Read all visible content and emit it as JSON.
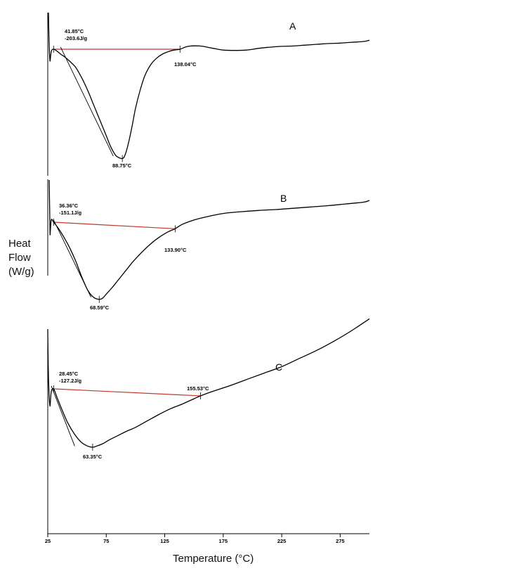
{
  "chart_data": {
    "type": "line",
    "xlabel": "Temperature (°C)",
    "ylabel_lines": [
      "Heat",
      "Flow",
      "(W/g)"
    ],
    "x_ticks": [
      25,
      75,
      125,
      175,
      225,
      275
    ],
    "xlim": [
      25,
      300
    ],
    "grid": false,
    "colors": {
      "curve": "#000000",
      "baseline": "#c0392b"
    },
    "series": [
      {
        "name": "A",
        "x": [
          27,
          28,
          30,
          33,
          36,
          40,
          44,
          49,
          54,
          59,
          64,
          69,
          74,
          79,
          83,
          86,
          88.75,
          91,
          94,
          97,
          100,
          104,
          108,
          113,
          118,
          123,
          128,
          133,
          138,
          145,
          155,
          165,
          175,
          185,
          195,
          205,
          215,
          225,
          235,
          245,
          255,
          265,
          275,
          285,
          295,
          300
        ],
        "y": [
          -0.3,
          -0.05,
          0.0,
          -0.05,
          -0.12,
          -0.2,
          -0.3,
          -0.45,
          -0.7,
          -1.0,
          -1.35,
          -1.7,
          -2.05,
          -2.4,
          -2.6,
          -2.66,
          -2.68,
          -2.6,
          -2.3,
          -1.9,
          -1.45,
          -1.0,
          -0.65,
          -0.38,
          -0.22,
          -0.12,
          -0.06,
          -0.02,
          0.0,
          0.07,
          0.08,
          0.03,
          -0.02,
          -0.03,
          -0.02,
          0.02,
          0.05,
          0.07,
          0.08,
          0.1,
          0.12,
          0.14,
          0.15,
          0.17,
          0.19,
          0.22
        ]
      },
      {
        "name": "B",
        "x": [
          27,
          28,
          30,
          33,
          36,
          40,
          44,
          49,
          54,
          59,
          64,
          69,
          72,
          75,
          80,
          86,
          92,
          98,
          105,
          112,
          120,
          128,
          133.9,
          140,
          150,
          160,
          175,
          190,
          205,
          220,
          235,
          250,
          265,
          280,
          295,
          300
        ],
        "y": [
          -0.3,
          0.05,
          0.0,
          -0.1,
          -0.22,
          -0.4,
          -0.6,
          -0.9,
          -1.25,
          -1.55,
          -1.72,
          -1.77,
          -1.74,
          -1.65,
          -1.5,
          -1.3,
          -1.1,
          -0.9,
          -0.7,
          -0.52,
          -0.35,
          -0.22,
          -0.15,
          -0.05,
          0.05,
          0.12,
          0.2,
          0.24,
          0.27,
          0.29,
          0.32,
          0.35,
          0.38,
          0.42,
          0.46,
          0.5
        ]
      },
      {
        "name": "C",
        "x": [
          27,
          28,
          30,
          33,
          37,
          42,
          48,
          54,
          59,
          63.35,
          67,
          72,
          78,
          85,
          92,
          100,
          110,
          120,
          130,
          140,
          150,
          155.53,
          165,
          180,
          195,
          210,
          225,
          240,
          255,
          270,
          285,
          300
        ],
        "y": [
          -0.3,
          -0.05,
          0.0,
          -0.15,
          -0.35,
          -0.58,
          -0.78,
          -0.92,
          -0.98,
          -1.0,
          -0.98,
          -0.94,
          -0.87,
          -0.8,
          -0.73,
          -0.66,
          -0.55,
          -0.44,
          -0.34,
          -0.26,
          -0.17,
          -0.12,
          -0.05,
          0.05,
          0.16,
          0.27,
          0.38,
          0.52,
          0.66,
          0.82,
          1.0,
          1.2
        ]
      }
    ],
    "baselines": [
      {
        "series": "A",
        "x": [
          30,
          138.04
        ],
        "y": [
          0.0,
          0.0
        ]
      },
      {
        "series": "B",
        "x": [
          30,
          133.9
        ],
        "y": [
          0.0,
          -0.15
        ]
      },
      {
        "series": "C",
        "x": [
          30,
          155.53
        ],
        "y": [
          0.0,
          -0.12
        ]
      }
    ],
    "annotations": [
      {
        "series": "A",
        "label": "A"
      },
      {
        "series": "A",
        "onset": "41.85°C",
        "enthalpy": "-203.6J/g"
      },
      {
        "series": "A",
        "text": "138.04°C"
      },
      {
        "series": "A",
        "text": "88.75°C"
      },
      {
        "series": "B",
        "label": "B"
      },
      {
        "series": "B",
        "onset": "36.36°C",
        "enthalpy": "-151.1J/g"
      },
      {
        "series": "B",
        "text": "133.90°C"
      },
      {
        "series": "B",
        "text": "68.59°C"
      },
      {
        "series": "C",
        "label": "C"
      },
      {
        "series": "C",
        "onset": "28.45°C",
        "enthalpy": "-127.2J/g"
      },
      {
        "series": "C",
        "text": "155.53°C"
      },
      {
        "series": "C",
        "text": "63.35°C"
      }
    ]
  }
}
